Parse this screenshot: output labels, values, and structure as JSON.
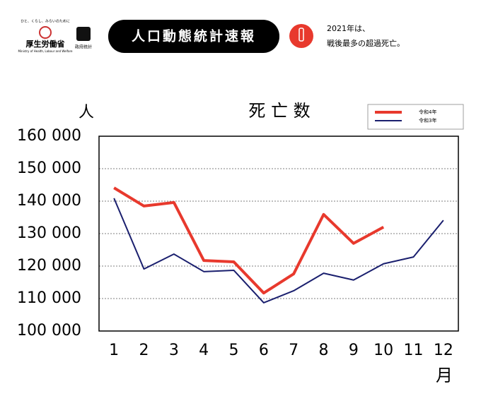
{
  "header": {
    "ministry_tagline": "ひと、くらし、みらいのために",
    "ministry": "厚生労働省",
    "ministry_en": "Ministry of Health, Labour and Welfare",
    "stats_logo": "政府統計",
    "banner": "人口動態統計速報",
    "note_line1": "2021年は、",
    "note_line2": "戦後最多の超過死亡。"
  },
  "chart_data": {
    "type": "line",
    "title": "死 亡 数",
    "y_label": "人",
    "x_label": "月",
    "categories": [
      "1",
      "2",
      "3",
      "4",
      "5",
      "6",
      "7",
      "8",
      "9",
      "10",
      "11",
      "12"
    ],
    "series": [
      {
        "name": "令和4年",
        "color": "#e8392d",
        "values": [
          144100,
          138500,
          139600,
          121700,
          121300,
          111700,
          117600,
          135900,
          127000,
          132000,
          null,
          null
        ]
      },
      {
        "name": "令和3年",
        "color": "#1a1f6e",
        "values": [
          140900,
          119100,
          123700,
          118300,
          118700,
          108700,
          112400,
          117800,
          115700,
          120700,
          122800,
          134100
        ]
      }
    ],
    "ylim": [
      100000,
      160000
    ],
    "yticks": [
      {
        "value": 100000,
        "label": "100 000"
      },
      {
        "value": 110000,
        "label": "110 000"
      },
      {
        "value": 120000,
        "label": "120 000"
      },
      {
        "value": 130000,
        "label": "130 000"
      },
      {
        "value": 140000,
        "label": "140 000"
      },
      {
        "value": 150000,
        "label": "150 000"
      },
      {
        "value": 160000,
        "label": "160 000"
      }
    ],
    "grid": true,
    "legend": "top-right"
  }
}
